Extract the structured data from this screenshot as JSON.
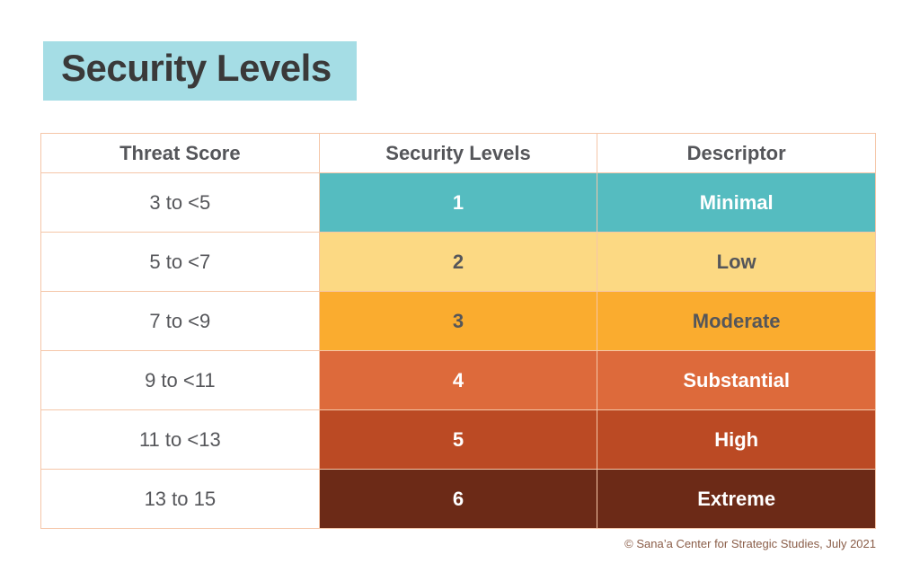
{
  "title": {
    "text": "Security Levels",
    "background": "#a5dde5",
    "color": "#3a3939"
  },
  "table": {
    "border_color": "#f5c6a8",
    "header_text_color": "#55565a",
    "headers": [
      "Threat Score",
      "Security Levels",
      "Descriptor"
    ],
    "rows": [
      {
        "threat_score": "3 to <5",
        "level": "1",
        "descriptor": "Minimal",
        "bg": "#55bcc0",
        "text": "#ffffff"
      },
      {
        "threat_score": "5 to <7",
        "level": "2",
        "descriptor": "Low",
        "bg": "#fcd983",
        "text": "#55565a"
      },
      {
        "threat_score": "7 to <9",
        "level": "3",
        "descriptor": "Moderate",
        "bg": "#faac2f",
        "text": "#55565a"
      },
      {
        "threat_score": "9 to <11",
        "level": "4",
        "descriptor": "Substantial",
        "bg": "#dd6a3b",
        "text": "#ffffff"
      },
      {
        "threat_score": "11 to <13",
        "level": "5",
        "descriptor": "High",
        "bg": "#bb4a24",
        "text": "#ffffff"
      },
      {
        "threat_score": "13 to 15",
        "level": "6",
        "descriptor": "Extreme",
        "bg": "#6c2a17",
        "text": "#ffffff"
      }
    ]
  },
  "footer": {
    "credit": "© Sana’a Center for Strategic Studies, July 2021",
    "color": "#8a5d48"
  },
  "chart_data": {
    "type": "table",
    "title": "Security Levels",
    "columns": [
      "Threat Score",
      "Security Levels",
      "Descriptor"
    ],
    "rows": [
      [
        "3 to <5",
        1,
        "Minimal"
      ],
      [
        "5 to <7",
        2,
        "Low"
      ],
      [
        "7 to <9",
        3,
        "Moderate"
      ],
      [
        "9 to <11",
        4,
        "Substantial"
      ],
      [
        "11 to <13",
        5,
        "High"
      ],
      [
        "13 to 15",
        6,
        "Extreme"
      ]
    ],
    "row_colors": [
      "#55bcc0",
      "#fcd983",
      "#faac2f",
      "#dd6a3b",
      "#bb4a24",
      "#6c2a17"
    ],
    "annotations": [
      "© Sana’a Center for Strategic Studies, July 2021"
    ],
    "legend_position": "none",
    "grid": true
  }
}
